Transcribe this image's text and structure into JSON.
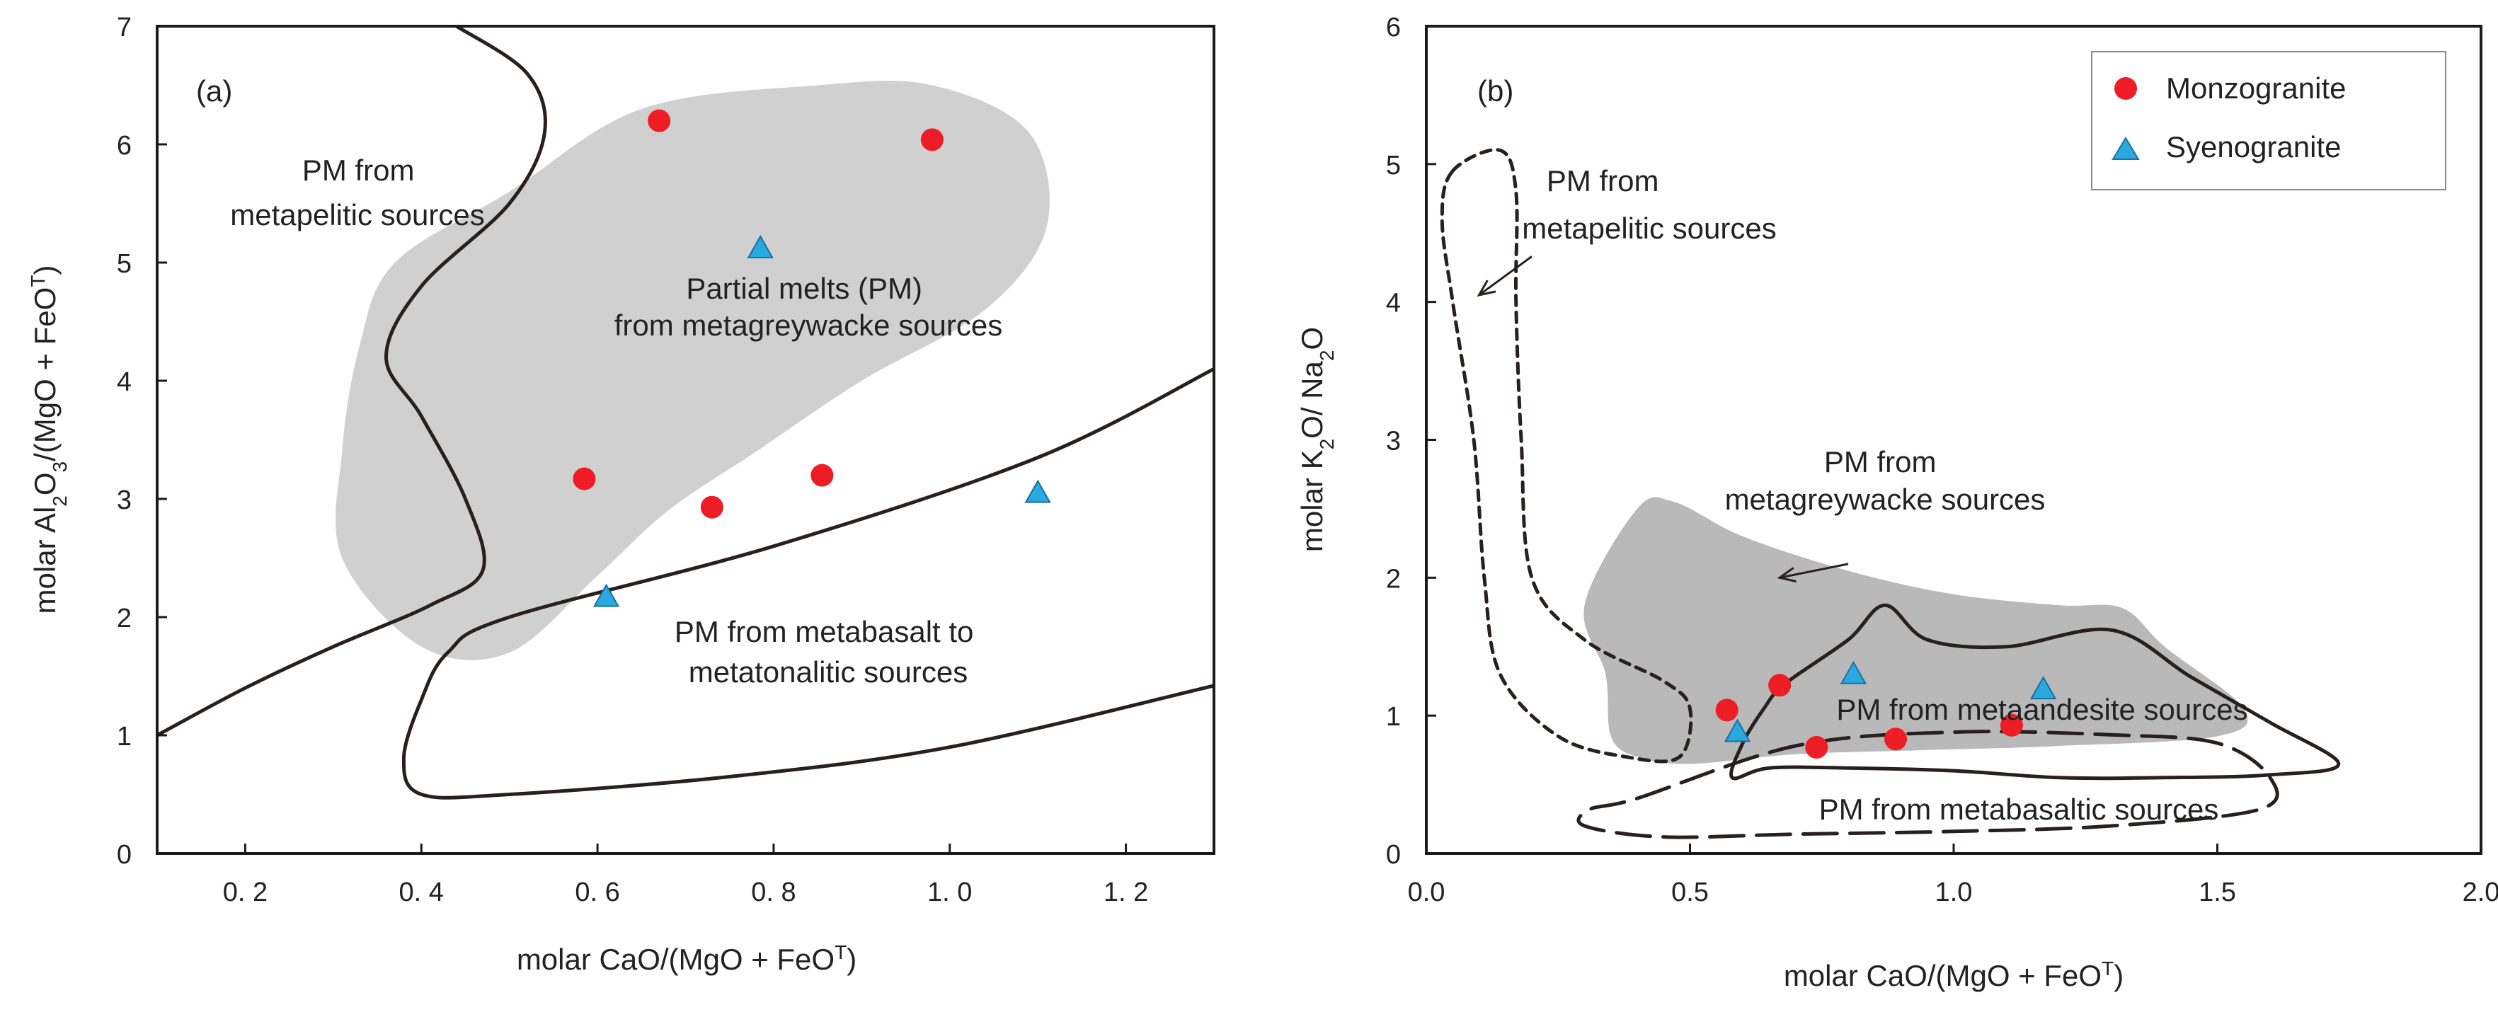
{
  "colors": {
    "monzogranite": "#ee1c24",
    "syenogranite": "#29a9e0",
    "field_a": "#d0d0d0",
    "field_b": "#b9b9b9",
    "line": "#2a1f1f"
  },
  "chart_data": [
    {
      "type": "scatter",
      "panel_label": "(a)",
      "xlabel": {
        "main": "molar CaO/(MgO + FeO",
        "sup": "T",
        "close": ")"
      },
      "ylabel": {
        "a": "molar Al",
        "sub": "2",
        "b": "O",
        "sub2": "3",
        "c": "/(MgO + FeO",
        "sup": "T",
        "d": ")"
      },
      "xlim": [
        0.1,
        1.3
      ],
      "ylim": [
        0,
        7
      ],
      "x_ticks": [
        {
          "v": 0.2,
          "label": "0. 2"
        },
        {
          "v": 0.4,
          "label": "0. 4"
        },
        {
          "v": 0.6,
          "label": "0. 6"
        },
        {
          "v": 0.8,
          "label": "0. 8"
        },
        {
          "v": 1.0,
          "label": "1. 0"
        },
        {
          "v": 1.2,
          "label": "1. 2"
        }
      ],
      "y_ticks": [
        {
          "v": 0,
          "label": "0"
        },
        {
          "v": 1,
          "label": "1"
        },
        {
          "v": 2,
          "label": "2"
        },
        {
          "v": 3,
          "label": "3"
        },
        {
          "v": 4,
          "label": "4"
        },
        {
          "v": 5,
          "label": "5"
        },
        {
          "v": 6,
          "label": "6"
        },
        {
          "v": 7,
          "label": "7"
        }
      ],
      "series": [
        {
          "name": "Monzogranite",
          "marker": "circle",
          "points": [
            [
              0.67,
              6.2
            ],
            [
              0.98,
              6.04
            ],
            [
              0.585,
              3.17
            ],
            [
              0.73,
              2.93
            ],
            [
              0.855,
              3.2
            ]
          ]
        },
        {
          "name": "Syenogranite",
          "marker": "triangle",
          "points": [
            [
              0.785,
              5.12
            ],
            [
              1.1,
              3.05
            ],
            [
              0.61,
              2.17
            ]
          ]
        }
      ],
      "fields": [
        {
          "name": "Partial melts (PM) from metagreywacke sources",
          "style": "filled",
          "path": [
            [
              0.5,
              5.6
            ],
            [
              0.65,
              6.3
            ],
            [
              0.85,
              6.5
            ],
            [
              0.98,
              6.5
            ],
            [
              1.09,
              6.1
            ],
            [
              1.11,
              5.3
            ],
            [
              1.04,
              4.6
            ],
            [
              0.9,
              4.0
            ],
            [
              0.78,
              3.4
            ],
            [
              0.68,
              2.9
            ],
            [
              0.6,
              2.35
            ],
            [
              0.5,
              1.7
            ],
            [
              0.4,
              1.75
            ],
            [
              0.31,
              2.5
            ],
            [
              0.31,
              3.4
            ],
            [
              0.33,
              4.3
            ],
            [
              0.37,
              5.0
            ]
          ]
        },
        {
          "name": "PM from metapelitic sources boundary",
          "style": "solid",
          "path": [
            [
              0.1,
              1.0
            ],
            [
              0.2,
              1.4
            ],
            [
              0.3,
              1.75
            ],
            [
              0.41,
              2.1
            ],
            [
              0.47,
              2.4
            ],
            [
              0.45,
              3.0
            ],
            [
              0.4,
              3.7
            ],
            [
              0.36,
              4.2
            ],
            [
              0.4,
              4.8
            ],
            [
              0.5,
              5.5
            ],
            [
              0.54,
              6.1
            ],
            [
              0.52,
              6.6
            ],
            [
              0.44,
              7.0
            ]
          ]
        },
        {
          "name": "PM from metabasalt to metatonalitic sources",
          "style": "solid",
          "path": [
            [
              1.3,
              4.1
            ],
            [
              1.1,
              3.35
            ],
            [
              0.8,
              2.6
            ],
            [
              0.5,
              2.0
            ],
            [
              0.43,
              1.7
            ],
            [
              0.4,
              1.3
            ],
            [
              0.38,
              0.8
            ],
            [
              0.4,
              0.5
            ],
            [
              0.5,
              0.5
            ],
            [
              0.75,
              0.65
            ],
            [
              1.0,
              0.9
            ],
            [
              1.3,
              1.42
            ]
          ]
        }
      ],
      "labels": {
        "pm_metapelitic": [
          "PM from",
          "metapelitic sources"
        ],
        "pm_metagreywacke": [
          "Partial melts (PM)",
          "from metagreywacke sources"
        ],
        "pm_metabasalt": [
          "PM from metabasalt to",
          "metatonalitic sources"
        ]
      }
    },
    {
      "type": "scatter",
      "panel_label": "(b)",
      "xlabel": {
        "main": "molar CaO/(MgO + FeO",
        "sup": "T",
        "close": ")"
      },
      "ylabel": {
        "a": "molar K",
        "sub": "2",
        "b": "O/ Na",
        "sub2": "2",
        "c": "O"
      },
      "xlim": [
        0,
        2.0
      ],
      "ylim": [
        0,
        6
      ],
      "x_ticks": [
        {
          "v": 0.0,
          "label": "0.0"
        },
        {
          "v": 0.5,
          "label": "0.5"
        },
        {
          "v": 1.0,
          "label": "1.0"
        },
        {
          "v": 1.5,
          "label": "1.5"
        },
        {
          "v": 2.0,
          "label": "2.0"
        }
      ],
      "y_ticks": [
        {
          "v": 0,
          "label": "0"
        },
        {
          "v": 1,
          "label": "1"
        },
        {
          "v": 2,
          "label": "2"
        },
        {
          "v": 3,
          "label": "3"
        },
        {
          "v": 4,
          "label": "4"
        },
        {
          "v": 5,
          "label": "5"
        },
        {
          "v": 6,
          "label": "6"
        }
      ],
      "legend": {
        "position": "top-right",
        "entries": [
          "Monzogranite",
          "Syenogranite"
        ]
      },
      "series": [
        {
          "name": "Monzogranite",
          "marker": "circle",
          "points": [
            [
              0.57,
              1.04
            ],
            [
              0.67,
              1.22
            ],
            [
              0.74,
              0.77
            ],
            [
              0.89,
              0.83
            ],
            [
              1.11,
              0.93
            ]
          ]
        },
        {
          "name": "Syenogranite",
          "marker": "triangle",
          "points": [
            [
              0.59,
              0.88
            ],
            [
              0.81,
              1.3
            ],
            [
              1.17,
              1.19
            ]
          ]
        }
      ],
      "fields": [
        {
          "name": "PM from metagreywacke sources",
          "style": "filled",
          "path": [
            [
              0.3,
              1.8
            ],
            [
              0.4,
              2.5
            ],
            [
              0.47,
              2.55
            ],
            [
              0.6,
              2.3
            ],
            [
              0.8,
              2.05
            ],
            [
              1.0,
              1.88
            ],
            [
              1.2,
              1.8
            ],
            [
              1.32,
              1.78
            ],
            [
              1.4,
              1.5
            ],
            [
              1.55,
              1.05
            ],
            [
              1.5,
              0.85
            ],
            [
              1.2,
              0.78
            ],
            [
              0.95,
              0.75
            ],
            [
              0.7,
              0.72
            ],
            [
              0.5,
              0.65
            ],
            [
              0.4,
              0.7
            ],
            [
              0.35,
              0.85
            ],
            [
              0.34,
              1.3
            ]
          ]
        },
        {
          "name": "PM from metapelitic sources",
          "style": "short-dash",
          "path": [
            [
              0.05,
              4.95
            ],
            [
              0.14,
              5.1
            ],
            [
              0.17,
              4.8
            ],
            [
              0.17,
              4.0
            ],
            [
              0.18,
              3.0
            ],
            [
              0.2,
              2.0
            ],
            [
              0.3,
              1.55
            ],
            [
              0.45,
              1.25
            ],
            [
              0.5,
              1.05
            ],
            [
              0.48,
              0.7
            ],
            [
              0.38,
              0.7
            ],
            [
              0.25,
              0.85
            ],
            [
              0.14,
              1.3
            ],
            [
              0.11,
              2.0
            ],
            [
              0.09,
              3.0
            ],
            [
              0.05,
              4.0
            ],
            [
              0.03,
              4.6
            ]
          ]
        },
        {
          "name": "PM from metaandesite sources",
          "style": "solid",
          "path": [
            [
              0.68,
              1.23
            ],
            [
              0.8,
              1.55
            ],
            [
              0.87,
              1.8
            ],
            [
              0.95,
              1.55
            ],
            [
              1.1,
              1.5
            ],
            [
              1.3,
              1.62
            ],
            [
              1.45,
              1.28
            ],
            [
              1.6,
              0.95
            ],
            [
              1.73,
              0.65
            ],
            [
              1.6,
              0.57
            ],
            [
              1.4,
              0.55
            ],
            [
              1.2,
              0.55
            ],
            [
              1.0,
              0.6
            ],
            [
              0.8,
              0.62
            ],
            [
              0.65,
              0.62
            ],
            [
              0.58,
              0.55
            ],
            [
              0.6,
              0.8
            ],
            [
              0.64,
              1.05
            ]
          ]
        },
        {
          "name": "PM from metabasaltic sources",
          "style": "long-dash",
          "path": [
            [
              0.4,
              0.4
            ],
            [
              0.7,
              0.78
            ],
            [
              1.0,
              0.88
            ],
            [
              1.3,
              0.86
            ],
            [
              1.5,
              0.8
            ],
            [
              1.6,
              0.55
            ],
            [
              1.58,
              0.32
            ],
            [
              1.3,
              0.2
            ],
            [
              1.0,
              0.16
            ],
            [
              0.7,
              0.14
            ],
            [
              0.45,
              0.12
            ],
            [
              0.3,
              0.2
            ],
            [
              0.31,
              0.32
            ]
          ]
        }
      ],
      "arrows": [
        {
          "from": [
            0.2,
            4.33
          ],
          "to": [
            0.1,
            4.05
          ]
        },
        {
          "from": [
            0.8,
            2.1
          ],
          "to": [
            0.67,
            2.0
          ]
        }
      ],
      "labels": {
        "pm_metapelitic": [
          "PM from",
          "metapelitic sources"
        ],
        "pm_metagreywacke": [
          "PM from",
          "metagreywacke sources"
        ],
        "pm_metaandesite": "PM from  metaandesite sources",
        "pm_metabasaltic": "PM from  metabasaltic sources"
      }
    }
  ]
}
